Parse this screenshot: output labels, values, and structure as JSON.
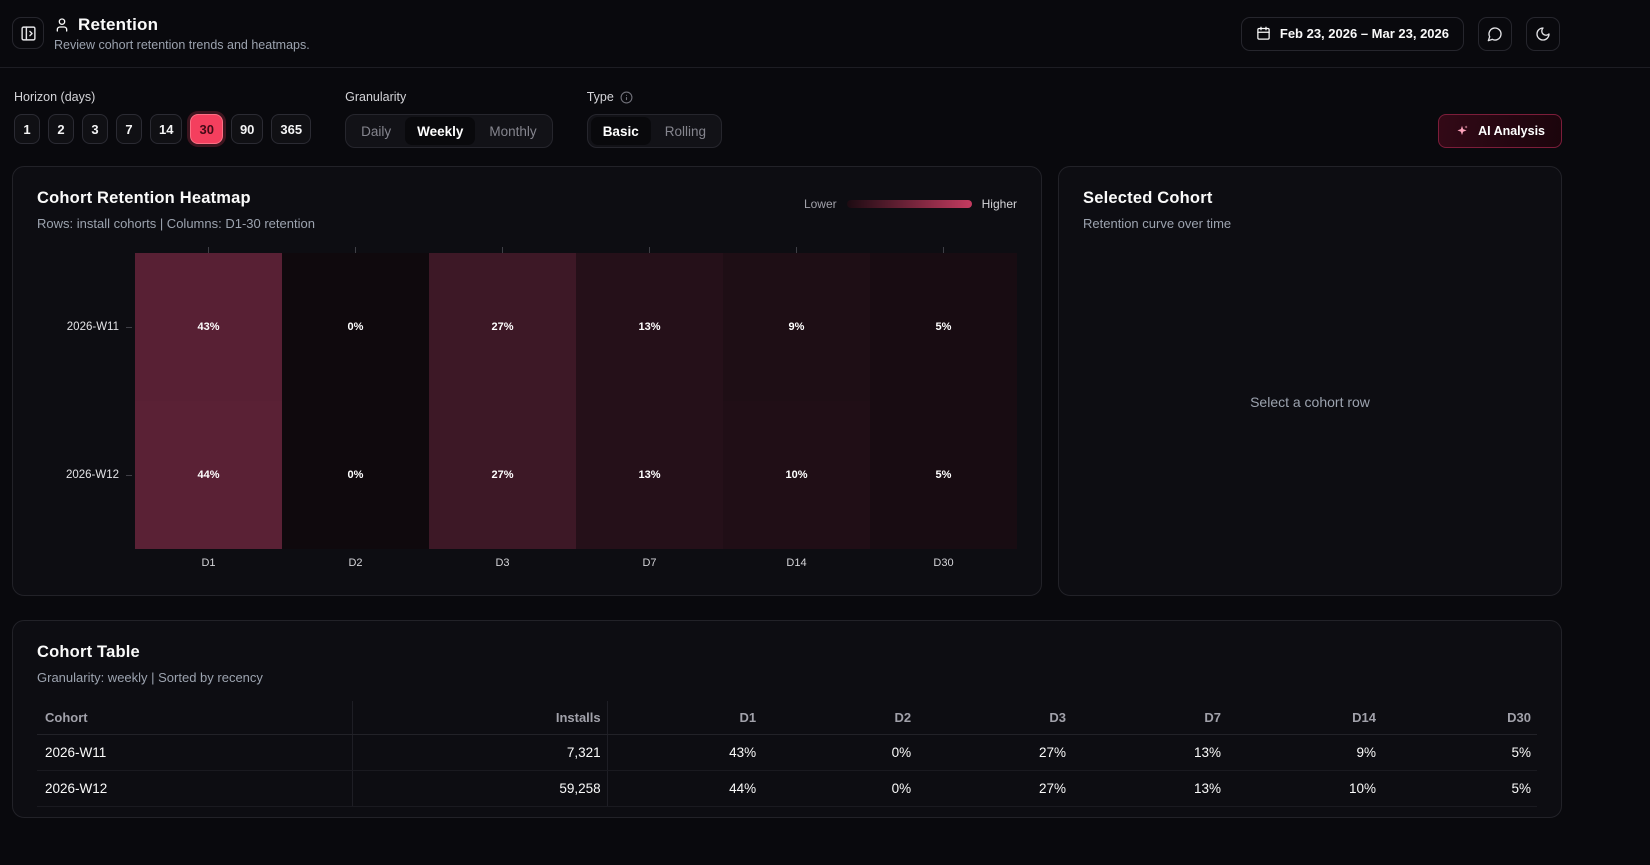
{
  "header": {
    "title": "Retention",
    "subtitle": "Review cohort retention trends and heatmaps.",
    "date_range": "Feb 23, 2026 – Mar 23, 2026"
  },
  "filters": {
    "horizon": {
      "label": "Horizon (days)",
      "options": [
        "1",
        "2",
        "3",
        "7",
        "14",
        "30",
        "90",
        "365"
      ],
      "selected": "30"
    },
    "granularity": {
      "label": "Granularity",
      "options": [
        "Daily",
        "Weekly",
        "Monthly"
      ],
      "selected": "Weekly"
    },
    "type": {
      "label": "Type",
      "options": [
        "Basic",
        "Rolling"
      ],
      "selected": "Basic"
    },
    "ai_analysis_label": "AI Analysis"
  },
  "heatmap_panel": {
    "title": "Cohort Retention Heatmap",
    "subtitle": "Rows: install cohorts | Columns: D1-30 retention",
    "legend_low_label": "Lower",
    "legend_high_label": "Higher"
  },
  "selected_cohort_panel": {
    "title": "Selected Cohort",
    "subtitle": "Retention curve over time",
    "empty_state": "Select a cohort row"
  },
  "table_panel": {
    "title": "Cohort Table",
    "subtitle": "Granularity: weekly | Sorted by recency",
    "columns": [
      "Cohort",
      "Installs",
      "D1",
      "D2",
      "D3",
      "D7",
      "D14",
      "D30"
    ],
    "rows": [
      {
        "cohort": "2026-W11",
        "installs": "7,321",
        "values": [
          "43%",
          "0%",
          "27%",
          "13%",
          "9%",
          "5%"
        ]
      },
      {
        "cohort": "2026-W12",
        "installs": "59,258",
        "values": [
          "44%",
          "0%",
          "27%",
          "13%",
          "10%",
          "5%"
        ]
      }
    ]
  },
  "chart_data": {
    "type": "heatmap",
    "title": "Cohort Retention Heatmap",
    "x_labels": [
      "D1",
      "D2",
      "D3",
      "D7",
      "D14",
      "D30"
    ],
    "y_labels": [
      "2026-W11",
      "2026-W12"
    ],
    "values": [
      [
        43,
        0,
        27,
        13,
        9,
        5
      ],
      [
        44,
        0,
        27,
        13,
        10,
        5
      ]
    ],
    "unit": "%",
    "colors": {
      "low": "#0f090d",
      "high": "#5a2135",
      "legend_low": "#1c0b12",
      "legend_high": "#c43b60",
      "accent": "#f43f5e"
    }
  }
}
